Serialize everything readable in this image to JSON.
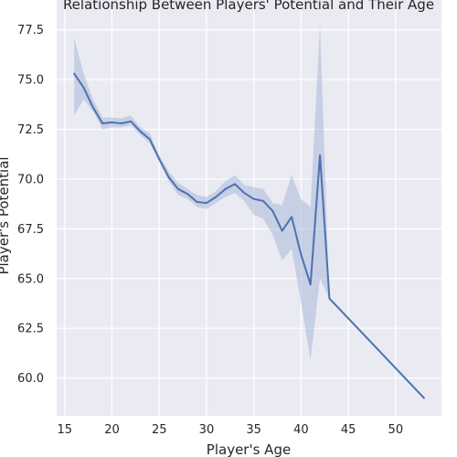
{
  "chart_data": {
    "type": "line",
    "title": "Relationship Between Players' Potential and Their Age",
    "xlabel": "Player's Age",
    "ylabel": "Player's Potential",
    "xlim": [
      14.15,
      54.85
    ],
    "ylim": [
      58.1,
      79.0
    ],
    "xticks": [
      15,
      20,
      25,
      30,
      35,
      40,
      45,
      50
    ],
    "yticks": [
      60.0,
      62.5,
      65.0,
      67.5,
      70.0,
      72.5,
      75.0,
      77.5
    ],
    "grid": true,
    "line_color": "#4c72b0",
    "band_color": "#a9b8d8",
    "background_color": "#eaeaf2",
    "series": [
      {
        "x": [
          16,
          17,
          18,
          19,
          20,
          21,
          22,
          23,
          24,
          25,
          26,
          27,
          28,
          29,
          30,
          31,
          32,
          33,
          34,
          35,
          36,
          37,
          38,
          39,
          40,
          41,
          42,
          43,
          53
        ],
        "y": [
          75.3,
          74.6,
          73.6,
          72.8,
          72.85,
          72.8,
          72.9,
          72.4,
          72.0,
          71.0,
          70.1,
          69.5,
          69.25,
          68.85,
          68.8,
          69.1,
          69.5,
          69.75,
          69.3,
          69.0,
          68.9,
          68.4,
          67.4,
          68.1,
          66.2,
          64.7,
          71.2,
          64.0,
          59.0
        ],
        "lower": [
          73.2,
          74.0,
          73.4,
          72.5,
          72.6,
          72.6,
          72.7,
          72.2,
          71.8,
          70.9,
          69.9,
          69.2,
          69.0,
          68.6,
          68.5,
          68.8,
          69.1,
          69.3,
          68.9,
          68.2,
          68.0,
          67.2,
          65.9,
          66.5,
          63.8,
          60.9,
          65.0,
          64.0,
          59.0
        ],
        "upper": [
          77.1,
          75.3,
          74.0,
          73.1,
          73.1,
          73.05,
          73.2,
          72.6,
          72.3,
          71.2,
          70.4,
          69.8,
          69.5,
          69.2,
          69.1,
          69.4,
          69.9,
          70.2,
          69.7,
          69.6,
          69.5,
          68.8,
          68.7,
          70.2,
          69.0,
          68.6,
          77.8,
          64.0,
          59.0
        ]
      }
    ]
  }
}
